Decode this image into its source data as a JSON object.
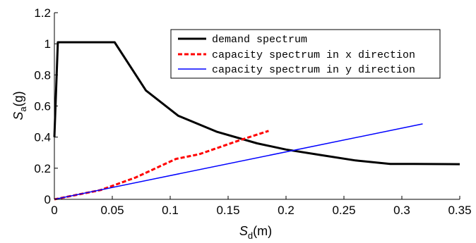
{
  "chart_data": {
    "type": "line",
    "title": "",
    "xlabel": {
      "main": "S",
      "sub": "d",
      "unit": "(m)"
    },
    "ylabel": {
      "main": "S",
      "sub": "a",
      "unit": "(g)"
    },
    "xlim": [
      0,
      0.35
    ],
    "ylim": [
      0,
      1.2
    ],
    "x_ticks": [
      0,
      0.05,
      0.1,
      0.15,
      0.2,
      0.25,
      0.3,
      0.35
    ],
    "x_tick_labels": [
      "0",
      "0.05",
      "0.1",
      "0.15",
      "0.2",
      "0.25",
      "0.3",
      "0.35"
    ],
    "y_ticks": [
      0,
      0.2,
      0.4,
      0.6,
      0.8,
      1.0,
      1.2
    ],
    "y_tick_labels": [
      "0",
      "0.2",
      "0.4",
      "0.6",
      "0.8",
      "1",
      "1.2"
    ],
    "grid": false,
    "legend_position": "top-right",
    "series": [
      {
        "name": "demand spectrum",
        "color": "#000000",
        "style": "solid",
        "points": [
          [
            0,
            0.4
          ],
          [
            0.003,
            1.01
          ],
          [
            0.052,
            1.01
          ],
          [
            0.079,
            0.7
          ],
          [
            0.107,
            0.537
          ],
          [
            0.14,
            0.435
          ],
          [
            0.175,
            0.36
          ],
          [
            0.2,
            0.32
          ],
          [
            0.23,
            0.285
          ],
          [
            0.26,
            0.25
          ],
          [
            0.29,
            0.228
          ],
          [
            0.31,
            0.228
          ],
          [
            0.35,
            0.226
          ]
        ]
      },
      {
        "name": "capacity spectrum in x direction",
        "color": "#ff0000",
        "style": "dashed",
        "points": [
          [
            0,
            0
          ],
          [
            0.04,
            0.06
          ],
          [
            0.07,
            0.14
          ],
          [
            0.105,
            0.26
          ],
          [
            0.125,
            0.29
          ],
          [
            0.16,
            0.38
          ],
          [
            0.185,
            0.44
          ]
        ]
      },
      {
        "name": "capacity spectrum in y direction",
        "color": "#0000ff",
        "style": "solid",
        "points": [
          [
            0,
            0
          ],
          [
            0.318,
            0.485
          ]
        ]
      }
    ]
  }
}
